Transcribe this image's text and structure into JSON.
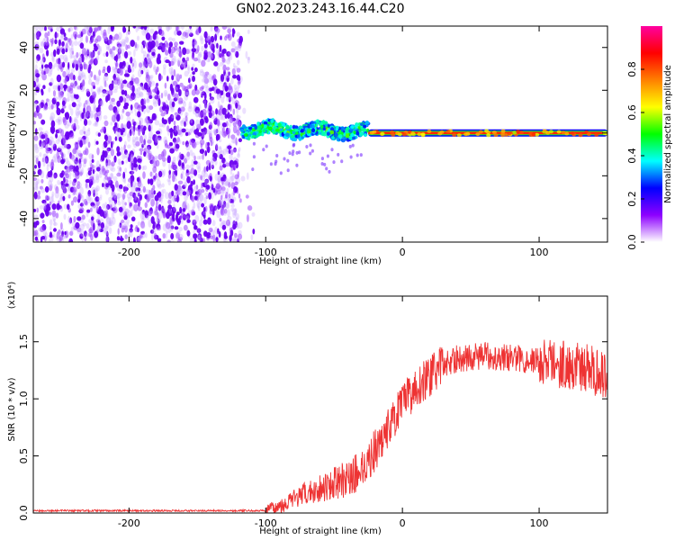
{
  "figure": {
    "title": "GN02.2023.243.16.44.C20"
  },
  "chart_data": [
    {
      "type": "heatmap",
      "title": "GN02.2023.243.16.44.C20",
      "xlabel": "Height of straight line (km)",
      "ylabel": "Frequency (Hz)",
      "xlim": [
        -270,
        150
      ],
      "ylim": [
        -51,
        50
      ],
      "xticks": [
        -200,
        -100,
        0,
        100
      ],
      "yticks": [
        -40,
        -20,
        0,
        20,
        40
      ],
      "colorbar": {
        "label": "Normalized spectral amplitude",
        "range": [
          0,
          1
        ],
        "ticks": [
          "0.0",
          "0.2",
          "0.4",
          "0.6",
          "0.8"
        ],
        "colormap": "gist_ncar-like rainbow",
        "colors": [
          "#ffffff",
          "#8d00ff",
          "#0000ff",
          "#00ffff",
          "#00ff00",
          "#ffff00",
          "#ff8000",
          "#ff0000",
          "#ff00a0"
        ]
      },
      "regions": [
        {
          "x_range": [
            -270,
            -118
          ],
          "description": "broadband noise",
          "freq_range": [
            -51,
            50
          ]
        },
        {
          "x_range": [
            -118,
            -25
          ],
          "description": "wandering signal band",
          "center_hz": 2,
          "width_hz": 6
        },
        {
          "x_range": [
            -25,
            150
          ],
          "description": "narrow carrier",
          "center_hz": 0,
          "width_hz": 2
        }
      ]
    },
    {
      "type": "line",
      "xlabel": "Height of straight line (km)",
      "ylabel": "SNR (10 * v/v)",
      "scale_label": "(x10⁴)",
      "xlim": [
        -270,
        150
      ],
      "ylim": [
        0,
        1.9
      ],
      "xticks": [
        -200,
        -100,
        0,
        100
      ],
      "yticks": [
        "0.0",
        "0.5",
        "1.0",
        "1.5"
      ],
      "color": "#ee3333",
      "series": [
        {
          "x": [
            -270,
            -200,
            -100,
            -90,
            -80,
            -60,
            -40,
            -30,
            -20,
            -10,
            0,
            10,
            20,
            30,
            40,
            60,
            80,
            100,
            120,
            140,
            150
          ],
          "values": [
            0.02,
            0.02,
            0.02,
            0.06,
            0.12,
            0.22,
            0.3,
            0.38,
            0.55,
            0.75,
            0.95,
            1.1,
            1.2,
            1.3,
            1.35,
            1.38,
            1.36,
            1.33,
            1.3,
            1.25,
            1.22
          ]
        }
      ]
    }
  ]
}
